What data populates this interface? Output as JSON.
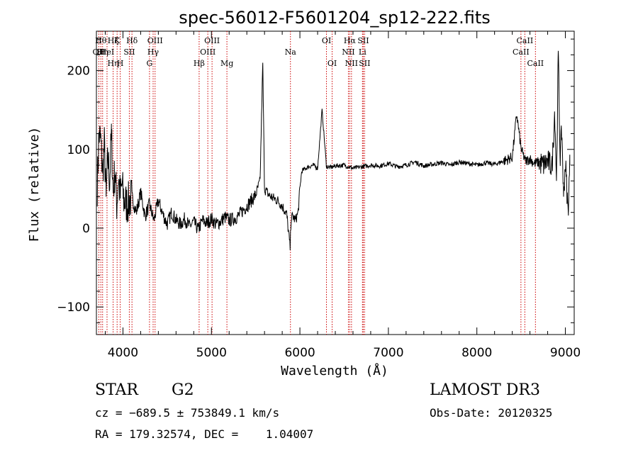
{
  "chart_data": {
    "type": "line",
    "title": "spec-56012-F5601204_sp12-222.fits",
    "xlabel": "Wavelength (Å)",
    "ylabel": "Flux (relative)",
    "xlim": [
      3700,
      9100
    ],
    "ylim": [
      -135,
      250
    ],
    "x_ticks": [
      4000,
      5000,
      6000,
      7000,
      8000,
      9000
    ],
    "y_ticks": [
      -100,
      0,
      100,
      200
    ],
    "x_tick_labels": [
      "4000",
      "5000",
      "6000",
      "7000",
      "8000",
      "9000"
    ],
    "y_tick_labels": [
      "−100",
      "0",
      "100",
      "200"
    ],
    "line_color": "#000000",
    "marker_color": "#cc0000",
    "series": [
      {
        "x": [
          3710,
          3730,
          3750,
          3770,
          3790,
          3810,
          3830,
          3850,
          3870,
          3890,
          3910,
          3930,
          3950,
          3970,
          3990,
          4010,
          4050,
          4100,
          4150,
          4200,
          4250,
          4300,
          4350,
          4400,
          4450,
          4500,
          4550,
          4600,
          4650,
          4700,
          4750,
          4800,
          4850,
          4900,
          4950,
          5000,
          5050,
          5100,
          5150,
          5200,
          5250,
          5300,
          5350,
          5400,
          5450,
          5500,
          5550,
          5580,
          5600,
          5650,
          5700,
          5750,
          5800,
          5850,
          5890,
          5900,
          5920,
          5950,
          5980,
          6000,
          6020,
          6050,
          6100,
          6150,
          6200,
          6250,
          6300,
          6350,
          6400,
          6500,
          6600,
          6700,
          6800,
          6900,
          7000,
          7100,
          7200,
          7300,
          7400,
          7500,
          7600,
          7700,
          7800,
          7900,
          8000,
          8100,
          8200,
          8300,
          8400,
          8450,
          8500,
          8550,
          8600,
          8650,
          8700,
          8750,
          8800,
          8850,
          8880,
          8900,
          8920,
          8940,
          8960,
          8980,
          9000,
          9030,
          9050
        ],
        "y": [
          55,
          120,
          110,
          70,
          105,
          40,
          90,
          60,
          120,
          45,
          75,
          30,
          65,
          40,
          55,
          35,
          30,
          40,
          20,
          45,
          15,
          30,
          10,
          35,
          18,
          5,
          20,
          10,
          5,
          12,
          2,
          8,
          -2,
          10,
          6,
          12,
          5,
          8,
          14,
          10,
          12,
          15,
          22,
          28,
          35,
          42,
          60,
          210,
          50,
          42,
          38,
          35,
          28,
          18,
          -25,
          12,
          15,
          10,
          20,
          50,
          72,
          75,
          78,
          80,
          76,
          150,
          78,
          77,
          79,
          80,
          76,
          78,
          80,
          79,
          82,
          78,
          80,
          84,
          79,
          81,
          83,
          80,
          84,
          82,
          80,
          83,
          81,
          85,
          90,
          145,
          100,
          85,
          88,
          82,
          84,
          80,
          85,
          78,
          150,
          60,
          225,
          90,
          125,
          40,
          85,
          20,
          80
        ]
      }
    ],
    "lines": [
      {
        "x": 3727,
        "top": [
          "C",
          "OII"
        ]
      },
      {
        "x": 3750,
        "top": [
          "Hθ"
        ]
      },
      {
        "x": 3770,
        "top": [
          "",
          "Hη"
        ]
      },
      {
        "x": 3820,
        "top": [
          "",
          "HeI"
        ]
      },
      {
        "x": 3889,
        "top": [
          "Hζ",
          "",
          "Hη"
        ]
      },
      {
        "x": 3934,
        "top": [
          "K"
        ]
      },
      {
        "x": 3969,
        "top": [
          "",
          "",
          "H"
        ]
      },
      {
        "x": 4072,
        "top": [
          "",
          "SII"
        ]
      },
      {
        "x": 4102,
        "top": [
          "Hδ"
        ]
      },
      {
        "x": 4300,
        "top": [
          "",
          "",
          "G"
        ]
      },
      {
        "x": 4341,
        "top": [
          "",
          "Hγ"
        ]
      },
      {
        "x": 4363,
        "top": [
          "OIII"
        ]
      },
      {
        "x": 4861,
        "top": [
          "",
          "",
          "Hβ"
        ]
      },
      {
        "x": 4959,
        "top": [
          "",
          "OIII"
        ]
      },
      {
        "x": 5007,
        "top": [
          "OIII"
        ]
      },
      {
        "x": 5175,
        "top": [
          "",
          "",
          "Mg"
        ]
      },
      {
        "x": 5893,
        "top": [
          "",
          "Na"
        ]
      },
      {
        "x": 6300,
        "top": [
          "OI"
        ]
      },
      {
        "x": 6364,
        "top": [
          "",
          "",
          "OI"
        ]
      },
      {
        "x": 6548,
        "top": [
          "",
          "NII"
        ]
      },
      {
        "x": 6563,
        "top": [
          "Hα"
        ]
      },
      {
        "x": 6583,
        "top": [
          "",
          "",
          "NII"
        ]
      },
      {
        "x": 6707,
        "top": [
          "",
          "Li"
        ]
      },
      {
        "x": 6716,
        "top": [
          "SII"
        ]
      },
      {
        "x": 6731,
        "top": [
          "",
          "",
          "SII"
        ]
      },
      {
        "x": 8498,
        "top": [
          "",
          "CaII"
        ]
      },
      {
        "x": 8542,
        "top": [
          "CaII"
        ]
      },
      {
        "x": 8662,
        "top": [
          "",
          "",
          "CaII"
        ]
      }
    ]
  },
  "footer": {
    "object_class": "STAR",
    "subclass": "G2",
    "survey": "LAMOST DR3",
    "cz": "cz = −689.5 ± 753849.1 km/s",
    "obs_date": "Obs-Date: 20120325",
    "coords": "RA = 179.32574, DEC =    1.04007"
  }
}
